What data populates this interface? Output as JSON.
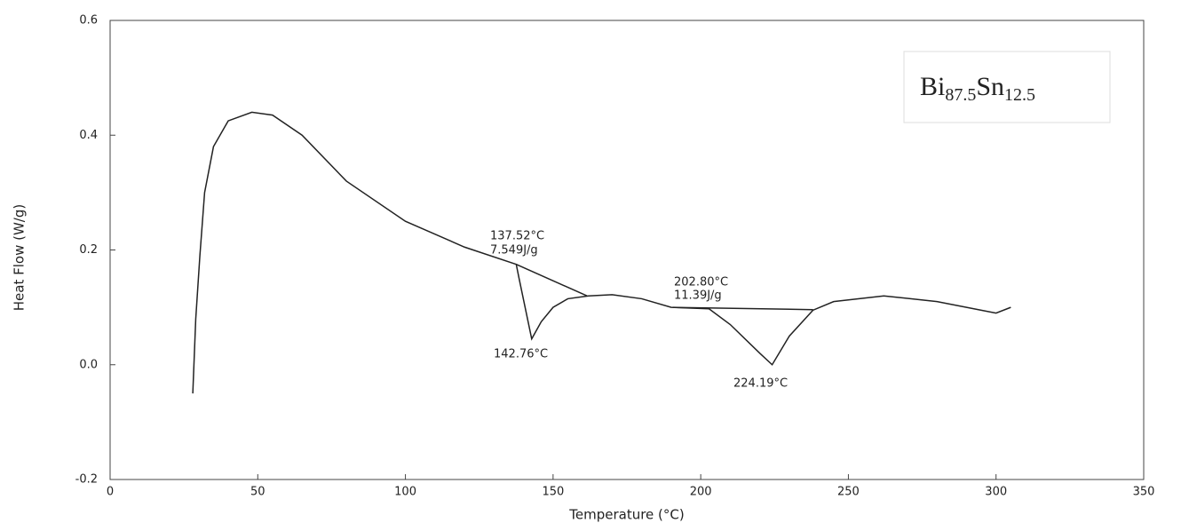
{
  "chart_data": {
    "type": "line",
    "x_label": "Temperature (°C)",
    "y_label": "Heat Flow (W/g)",
    "xlim": [
      0,
      350
    ],
    "xticks": [
      0,
      50,
      100,
      150,
      200,
      250,
      300,
      350
    ],
    "ylim": [
      -0.2,
      0.6
    ],
    "yticks": [
      -0.2,
      {
        "value": 0,
        "label": "0.0"
      },
      0.2,
      0.4,
      0.6
    ],
    "color": "#222222",
    "series": [
      {
        "x": [
          28,
          29,
          30.4,
          32,
          35,
          40,
          48,
          55,
          65,
          80,
          100,
          120,
          137.52,
          138.5,
          142.76,
          146,
          150,
          155,
          162,
          170,
          180,
          190,
          202.8,
          210,
          220,
          224.19,
          230,
          238,
          245,
          262,
          280,
          295,
          300,
          305
        ],
        "values": [
          -0.05,
          0.08,
          0.19,
          0.3,
          0.38,
          0.425,
          0.44,
          0.435,
          0.4,
          0.32,
          0.25,
          0.205,
          0.175,
          0.15,
          0.045,
          0.075,
          0.1,
          0.115,
          0.12,
          0.122,
          0.115,
          0.1,
          0.0975,
          0.07,
          0.02,
          0.0,
          0.05,
          0.095,
          0.11,
          0.12,
          0.11,
          0.095,
          0.09,
          0.1
        ]
      },
      {
        "x": [
          137.52,
          161.5
        ],
        "values": [
          0.175,
          0.12
        ]
      },
      {
        "x": [
          190.5,
          238
        ],
        "values": [
          0.1,
          0.096
        ]
      }
    ],
    "annotations": [
      "137.52°C",
      "7.549J/g",
      "142.76°C",
      "202.80°C",
      "11.39J/g",
      "224.19°C"
    ],
    "inset_label": [
      "Bi",
      "87.5",
      "Sn",
      "12.5"
    ]
  }
}
